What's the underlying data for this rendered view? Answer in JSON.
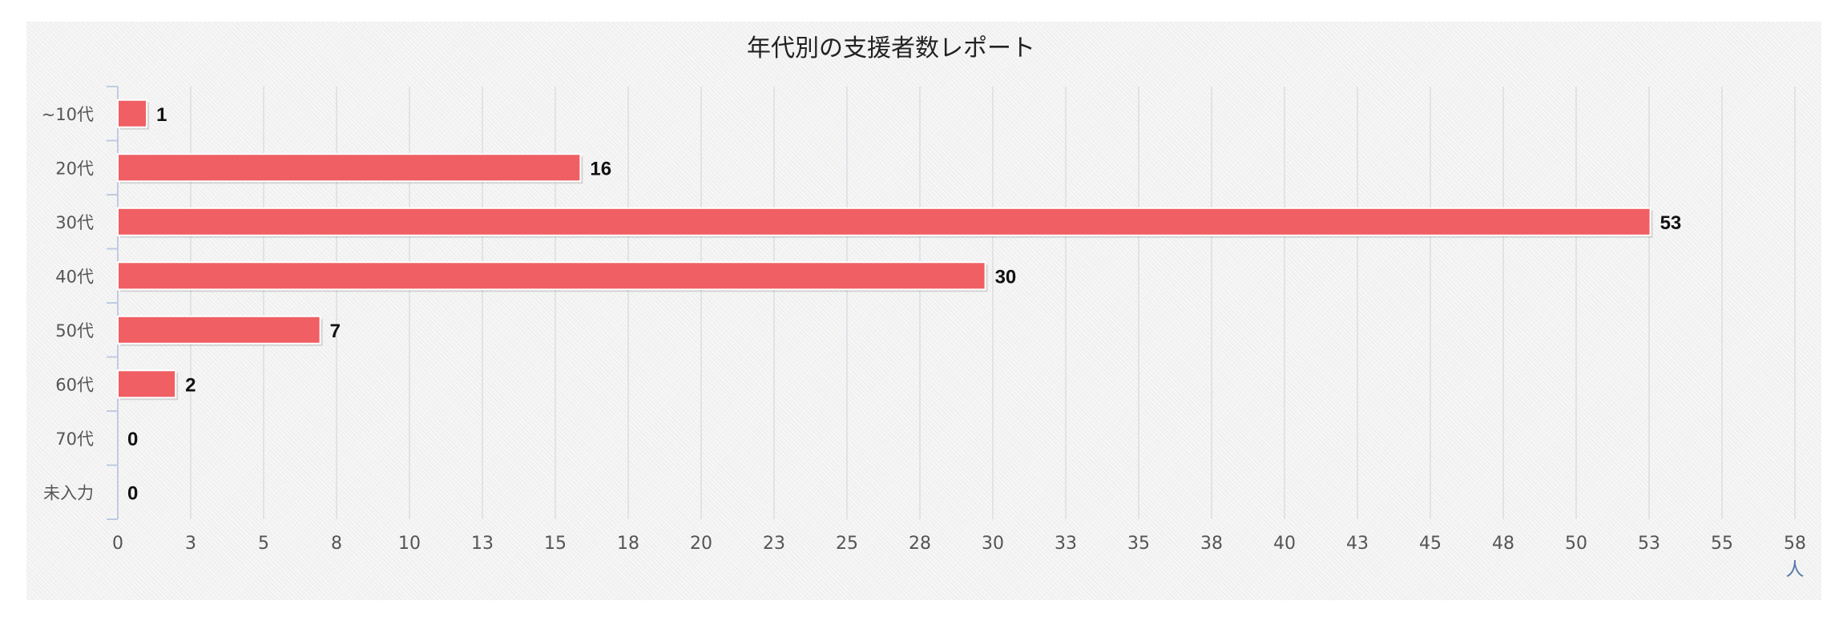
{
  "chart_data": {
    "type": "bar",
    "orientation": "horizontal",
    "title": "年代別の支援者数レポート",
    "categories": [
      "~10代",
      "20代",
      "30代",
      "40代",
      "50代",
      "60代",
      "70代",
      "未入力"
    ],
    "values": [
      1,
      16,
      53,
      30,
      7,
      2,
      0,
      0
    ],
    "xlim": [
      0,
      58
    ],
    "x_tick_labels": [
      "0",
      "3",
      "5",
      "8",
      "10",
      "13",
      "15",
      "18",
      "20",
      "23",
      "25",
      "28",
      "30",
      "33",
      "35",
      "38",
      "40",
      "43",
      "45",
      "48",
      "50",
      "53",
      "55",
      "58"
    ],
    "x_unit": "人",
    "grid": true,
    "legend": "none",
    "colors": {
      "bar": "#f05f63",
      "background": "#f2f2f2",
      "grid": "#d9dde3",
      "unit": "#5577aa"
    }
  }
}
